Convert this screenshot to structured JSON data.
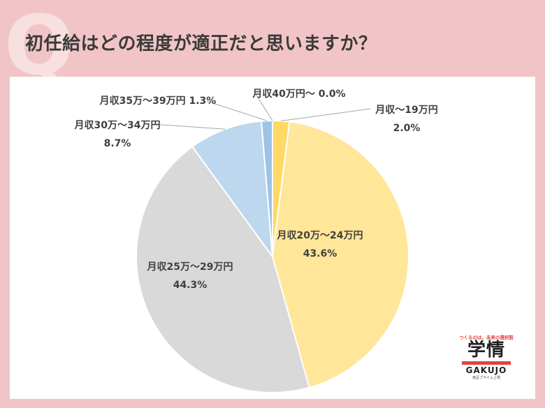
{
  "header": {
    "badge_letter": "Q",
    "question": "初任給はどの程度が適正だと思いますか？"
  },
  "chart_data": {
    "type": "pie",
    "start_angle_deg": 0,
    "direction": "clockwise",
    "slices": [
      {
        "label": "月収〜19万円",
        "value": 2.0,
        "value_text": "2.0%",
        "color": "#ffd966"
      },
      {
        "label": "月収20万〜24万円",
        "value": 43.6,
        "value_text": "43.6%",
        "color": "#ffe699"
      },
      {
        "label": "月収25万〜29万円",
        "value": 44.3,
        "value_text": "44.3%",
        "color": "#d9d9d9"
      },
      {
        "label": "月収30万〜34万円",
        "value": 8.7,
        "value_text": "8.7%",
        "color": "#bdd7ee"
      },
      {
        "label": "月収35万〜39万円",
        "value": 1.3,
        "value_text": "1.3%",
        "color": "#9dc3e6"
      },
      {
        "label": "月収40万円〜",
        "value": 0.0,
        "value_text": "0.0%",
        "color": "#2e75b6"
      }
    ]
  },
  "logo": {
    "tagline": "つくるのは、未来の選択肢",
    "kanji": "学情",
    "name": "GAKUJO",
    "sub": "東証プライム上場"
  }
}
